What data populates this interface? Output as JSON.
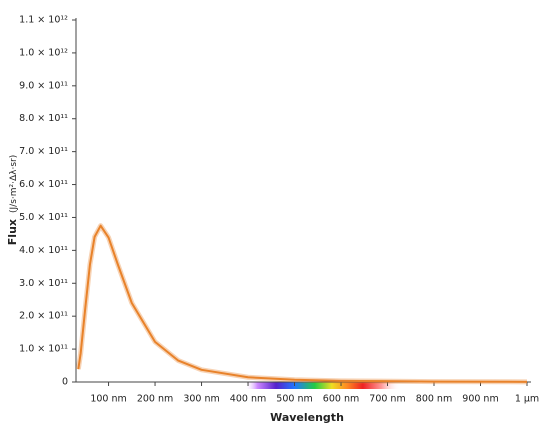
{
  "chart_data": {
    "type": "line",
    "x_label": "Wavelength",
    "y_label": "Flux",
    "y_label_units": "(J/s·m²·Δλ·sr)",
    "x": [
      35,
      40,
      50,
      60,
      70,
      83,
      100,
      120,
      150,
      200,
      250,
      300,
      400,
      500,
      600,
      800,
      1000
    ],
    "series": [
      {
        "color": "#e8822a",
        "values": [
          39000000000.0,
          87000000000.0,
          225000000000.0,
          357000000000.0,
          441000000000.0,
          475000000000.0,
          439000000000.0,
          357000000000.0,
          240000000000.0,
          122000000000.0,
          65000000000.0,
          37000000000.0,
          14400000000.0,
          6700000000.0,
          3500000000.0,
          1200000000.0,
          500000000.0
        ]
      }
    ],
    "xlim": [
      30,
      1000
    ],
    "xticks": [
      {
        "value": 100,
        "label": "100 nm"
      },
      {
        "value": 200,
        "label": "200 nm"
      },
      {
        "value": 300,
        "label": "300 nm"
      },
      {
        "value": 400,
        "label": "400 nm"
      },
      {
        "value": 500,
        "label": "500 nm"
      },
      {
        "value": 600,
        "label": "600 nm"
      },
      {
        "value": 700,
        "label": "700 nm"
      },
      {
        "value": 800,
        "label": "800 nm"
      },
      {
        "value": 900,
        "label": "900 nm"
      },
      {
        "value": 1000,
        "label": "1 µm"
      }
    ],
    "ylim": [
      0,
      1100000000000.0
    ],
    "yticks": [
      0,
      {
        "value": 100000000000.0,
        "label": "1.0 × 10¹¹"
      },
      {
        "value": 200000000000.0,
        "label": "2.0 × 10¹¹"
      },
      {
        "value": 300000000000.0,
        "label": "3.0 × 10¹¹"
      },
      {
        "value": 400000000000.0,
        "label": "4.0 × 10¹¹"
      },
      {
        "value": 500000000000.0,
        "label": "5.0 × 10¹¹"
      },
      {
        "value": 600000000000.0,
        "label": "6.0 × 10¹¹"
      },
      {
        "value": 700000000000.0,
        "label": "7.0 × 10¹¹"
      },
      {
        "value": 800000000000.0,
        "label": "8.0 × 10¹¹"
      },
      {
        "value": 900000000000.0,
        "label": "9.0 × 10¹¹"
      },
      {
        "value": 1000000000000.0,
        "label": "1.0 × 10¹²"
      },
      {
        "value": 1100000000000.0,
        "label": "1.1 × 10¹²"
      }
    ],
    "grid": false
  }
}
